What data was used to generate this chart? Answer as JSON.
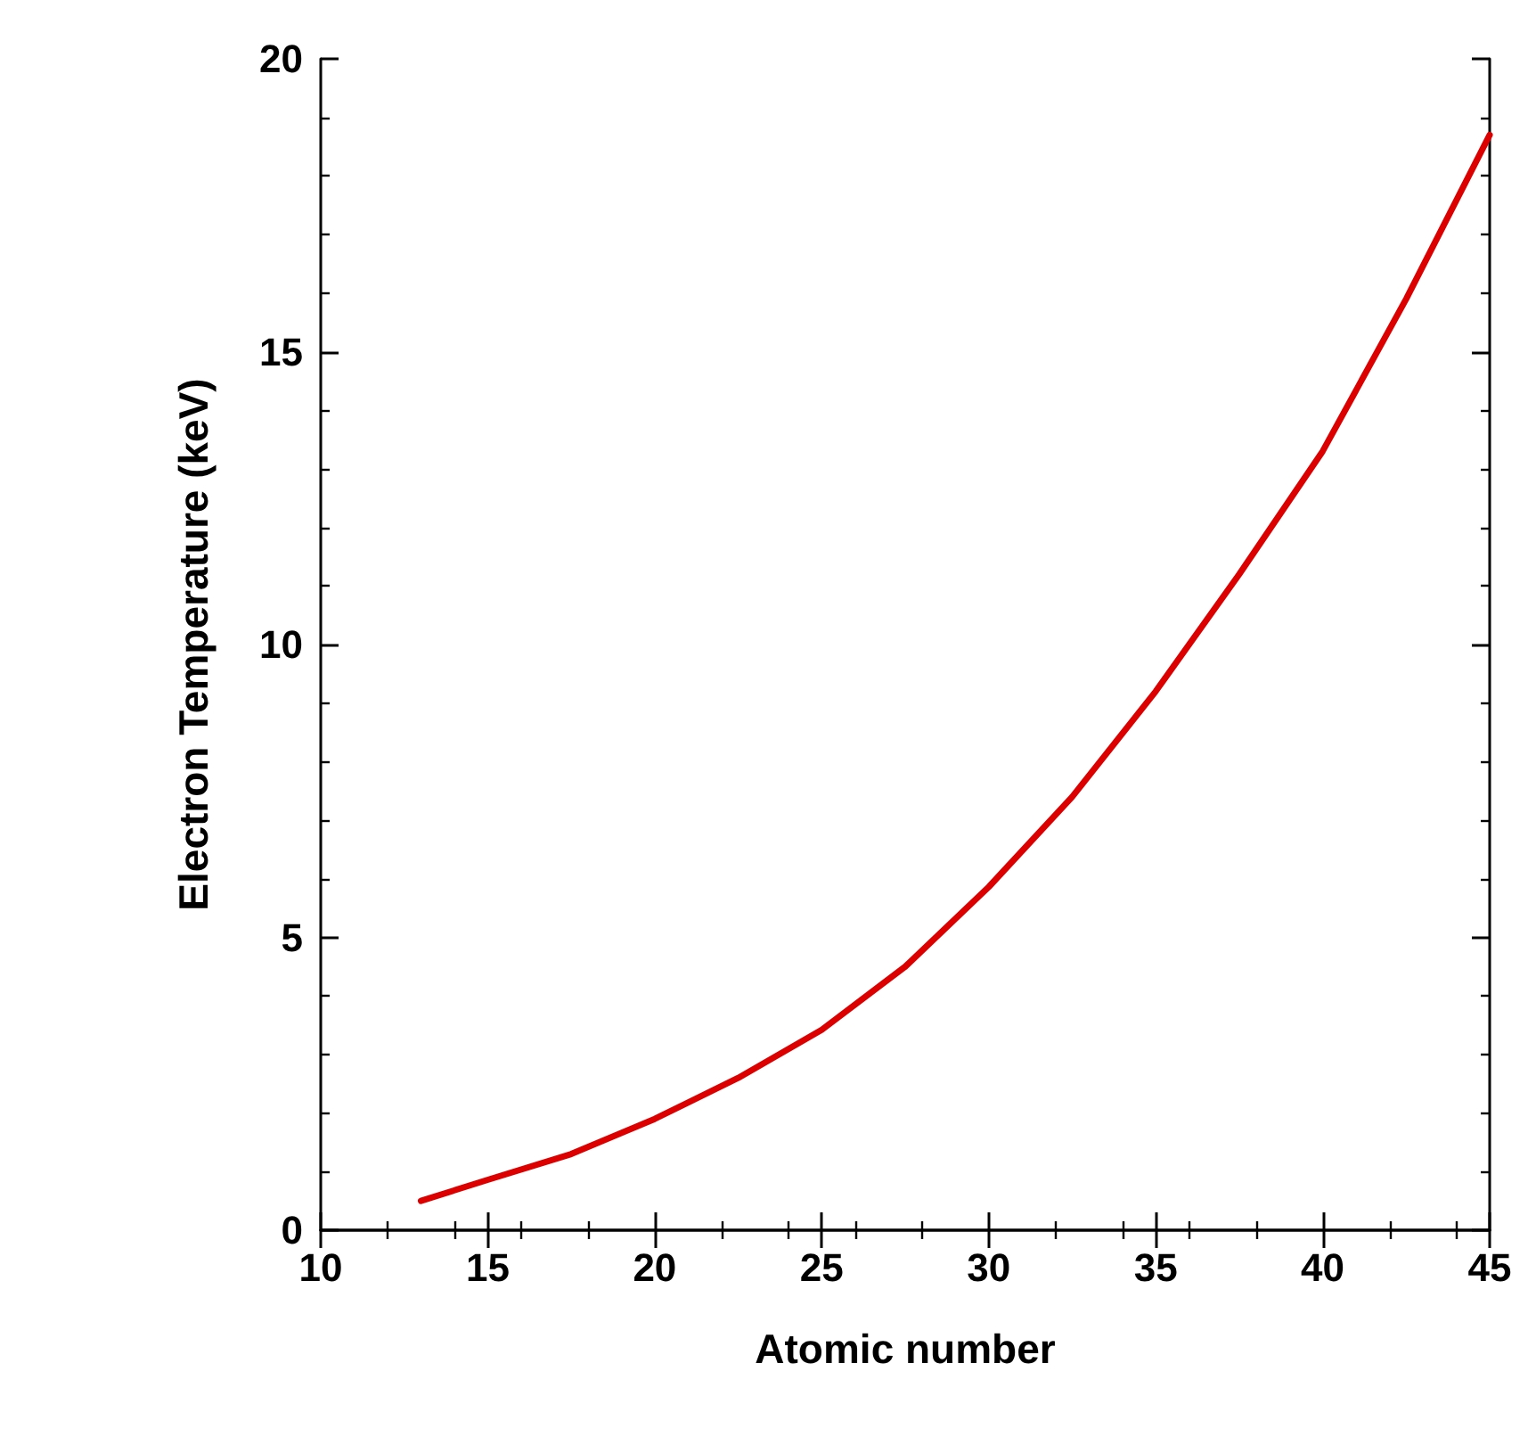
{
  "chart_data": {
    "type": "line",
    "xlabel": "Atomic number",
    "ylabel": "Electron Temperature (keV)",
    "x": [
      13,
      15,
      17.5,
      20,
      22.5,
      25,
      27.5,
      30,
      32.5,
      35,
      37.5,
      40,
      42.5,
      45
    ],
    "series": [
      {
        "color": "#dd0000",
        "values": [
          0.5,
          0.86,
          1.3,
          1.9,
          2.6,
          3.42,
          4.5,
          5.86,
          7.4,
          9.2,
          11.2,
          13.3,
          15.9,
          18.7
        ]
      }
    ],
    "xlim": [
      10,
      45
    ],
    "xticks": [
      10,
      15,
      20,
      25,
      30,
      35,
      40,
      45
    ],
    "ylim": [
      0,
      20
    ],
    "yticks": [
      0,
      5,
      10,
      15,
      20
    ],
    "grid": false,
    "marker": "none",
    "line_style": "solid"
  }
}
